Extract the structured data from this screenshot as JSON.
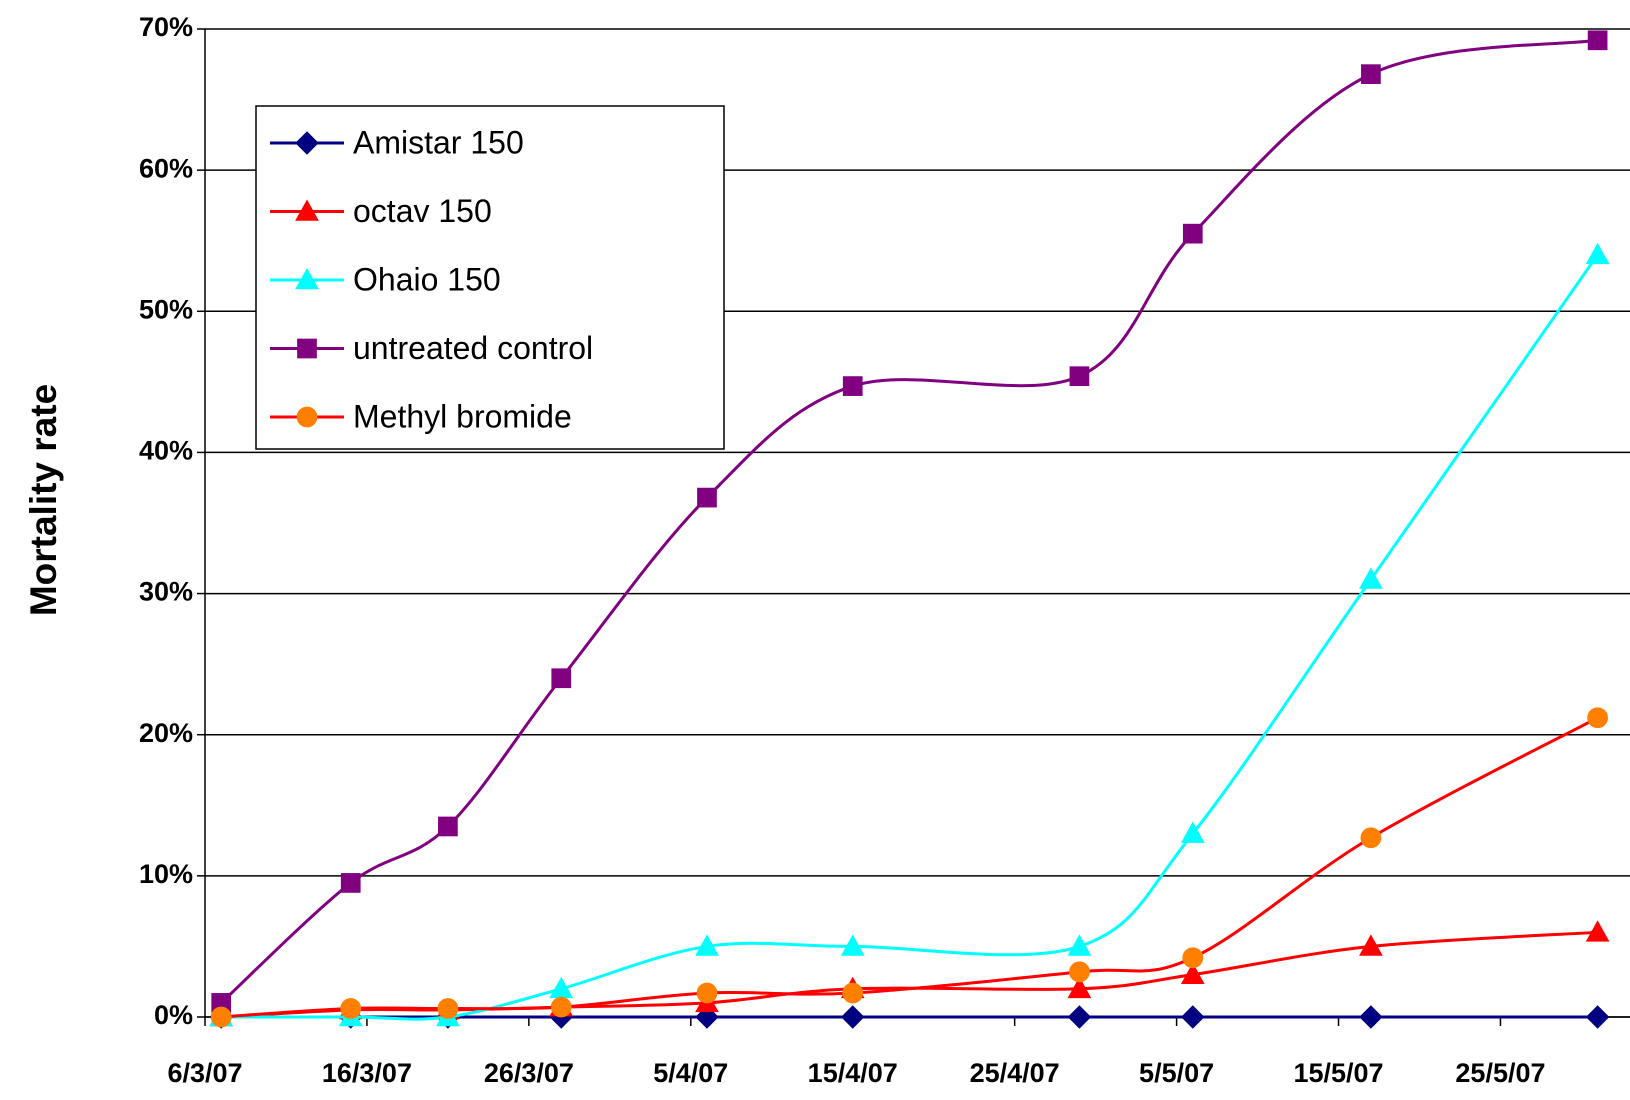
{
  "chart_data": {
    "type": "line",
    "y_label": "Mortality rate",
    "x": [
      "2007-03-07",
      "2007-03-15",
      "2007-03-21",
      "2007-03-28",
      "2007-04-06",
      "2007-04-15",
      "2007-04-29",
      "2007-05-06",
      "2007-05-17",
      "2007-05-31"
    ],
    "series": [
      {
        "name": "Amistar 150",
        "color": "#000080",
        "marker": "diamond",
        "values": [
          0,
          0,
          0,
          0,
          0,
          0,
          0,
          0,
          0,
          0
        ]
      },
      {
        "name": "octav 150",
        "color": "#ff0000",
        "marker": "triangle",
        "values": [
          0,
          0.5,
          0.5,
          0.7,
          1,
          2,
          2,
          3,
          5,
          6
        ]
      },
      {
        "name": "Ohaio 150",
        "color": "#00ffff",
        "marker": "triangle",
        "values": [
          0,
          0,
          0,
          2,
          5,
          5,
          5,
          13,
          31,
          54
        ]
      },
      {
        "name": "untreated control",
        "color": "#800080",
        "marker": "square",
        "values": [
          1,
          9.5,
          13.5,
          24,
          36.8,
          44.7,
          45.4,
          55.5,
          66.8,
          69.2
        ]
      },
      {
        "name": "Methyl bromide",
        "color": "#ff0000",
        "marker_color": "#ff8000",
        "marker": "circle",
        "values": [
          0,
          0.6,
          0.6,
          0.7,
          1.7,
          1.7,
          3.2,
          4.2,
          12.7,
          21.2
        ]
      }
    ],
    "xlim": [
      "2007-03-06",
      "2007-06-02"
    ],
    "xticks": [
      {
        "value": "2007-03-06",
        "label": "6/3/07"
      },
      {
        "value": "2007-03-16",
        "label": "16/3/07"
      },
      {
        "value": "2007-03-26",
        "label": "26/3/07"
      },
      {
        "value": "2007-04-05",
        "label": "5/4/07"
      },
      {
        "value": "2007-04-15",
        "label": "15/4/07"
      },
      {
        "value": "2007-04-25",
        "label": "25/4/07"
      },
      {
        "value": "2007-05-05",
        "label": "5/5/07"
      },
      {
        "value": "2007-05-15",
        "label": "15/5/07"
      },
      {
        "value": "2007-05-25",
        "label": "25/5/07"
      }
    ],
    "ylim": [
      0,
      70
    ],
    "yticks": [
      {
        "value": 0,
        "label": "0%"
      },
      {
        "value": 10,
        "label": "10%"
      },
      {
        "value": 20,
        "label": "20%"
      },
      {
        "value": 30,
        "label": "30%"
      },
      {
        "value": 40,
        "label": "40%"
      },
      {
        "value": 50,
        "label": "50%"
      },
      {
        "value": 60,
        "label": "60%"
      },
      {
        "value": 70,
        "label": "70%"
      }
    ],
    "grid": true,
    "legend": "upper left"
  }
}
